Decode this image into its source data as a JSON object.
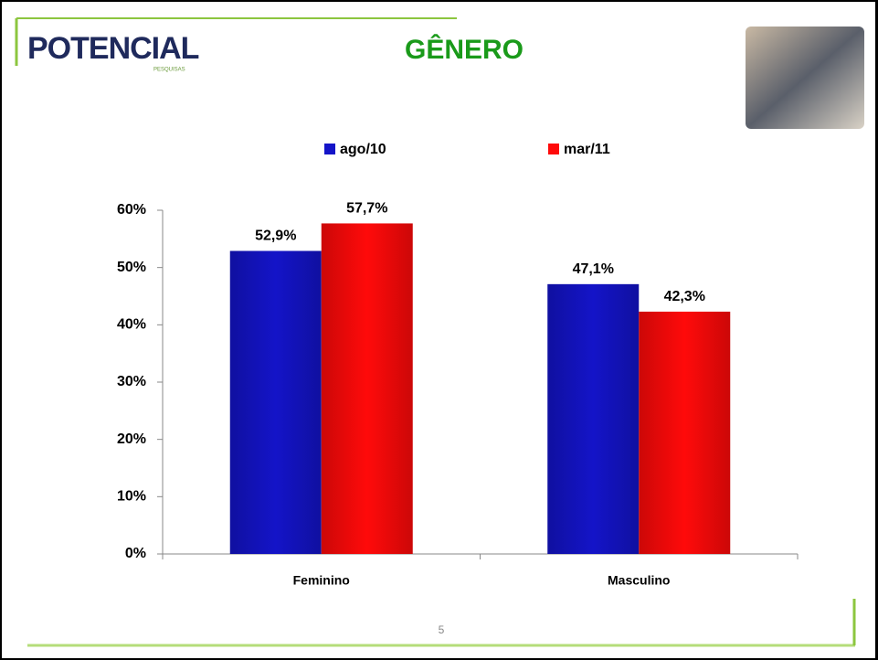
{
  "header": {
    "logo": "POTENCIAL",
    "logo_sub": "PESQUISAS",
    "page_number": "5"
  },
  "chart_data": {
    "type": "bar",
    "title": "GÊNERO",
    "categories": [
      "Feminino",
      "Masculino"
    ],
    "series": [
      {
        "name": "ago/10",
        "color": "#1414c8",
        "values": [
          52.9,
          47.1
        ],
        "value_labels": [
          "52,9%",
          "47,1%"
        ]
      },
      {
        "name": "mar/11",
        "color": "#ff0a0a",
        "values": [
          57.7,
          42.3
        ],
        "value_labels": [
          "57,7%",
          "42,3%"
        ]
      }
    ],
    "ylim": [
      0,
      60
    ],
    "yticks": [
      {
        "value": 0,
        "label": "0%"
      },
      {
        "value": 10,
        "label": "10%"
      },
      {
        "value": 20,
        "label": "20%"
      },
      {
        "value": 30,
        "label": "30%"
      },
      {
        "value": 40,
        "label": "40%"
      },
      {
        "value": 50,
        "label": "50%"
      },
      {
        "value": 60,
        "label": "60%"
      }
    ],
    "legend": "top",
    "grid": false
  }
}
